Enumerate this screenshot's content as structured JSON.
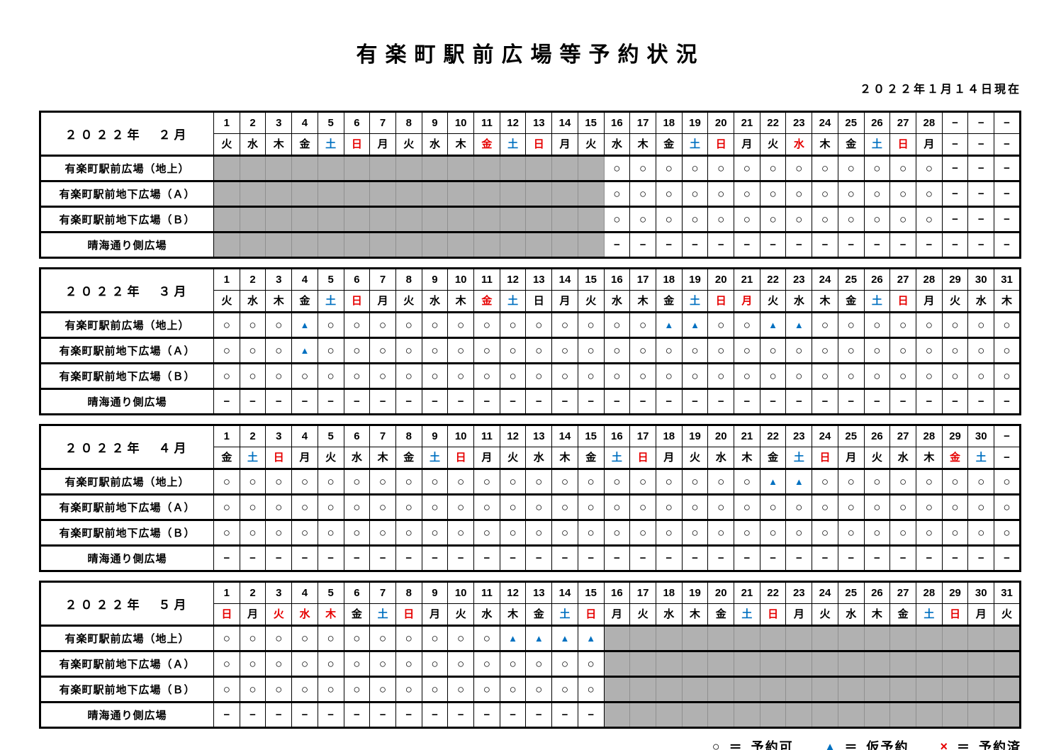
{
  "title": "有楽町駅前広場等予約状況",
  "as_of": "２０２２年１月１４日現在",
  "colors": {
    "red": "#e60000",
    "blue": "#0070c0",
    "gray": "#b1b1b1"
  },
  "marks": {
    "o": "○",
    "t": "▲",
    "d": "−",
    "x": "×"
  },
  "row_labels": [
    "有楽町駅前広場（地上）",
    "有楽町駅前地下広場（Ａ）",
    "有楽町駅前地下広場（Ｂ）",
    "晴海通り側広場"
  ],
  "legend": {
    "eq": "＝",
    "items": [
      {
        "symbol": "○",
        "color": "#000000",
        "label": "予約可"
      },
      {
        "symbol": "▲",
        "color": "#0070c0",
        "label": "仮予約"
      },
      {
        "symbol": "×",
        "color": "#e60000",
        "label": "予約済"
      }
    ]
  },
  "months": [
    {
      "label": "２０２２年　２月",
      "days": [
        "1",
        "2",
        "3",
        "4",
        "5",
        "6",
        "7",
        "8",
        "9",
        "10",
        "11",
        "12",
        "13",
        "14",
        "15",
        "16",
        "17",
        "18",
        "19",
        "20",
        "21",
        "22",
        "23",
        "24",
        "25",
        "26",
        "27",
        "28",
        "−",
        "−",
        "−"
      ],
      "wdays": "火水木金土日月火水木金土日月火水木金土日月火水木金土日月−−−",
      "wcolors": "kkkkbrkkkkrbrkkkkkbrkkrkkbrkkkk",
      "rows": [
        "gggggggggggggggooooooooooooo---",
        "gggggggggggggggooooooooooooo---",
        "gggggggggggggggooooooooooooo---",
        "ggggggggggggggg----------------"
      ]
    },
    {
      "label": "２０２２年　３月",
      "days": [
        "1",
        "2",
        "3",
        "4",
        "5",
        "6",
        "7",
        "8",
        "9",
        "10",
        "11",
        "12",
        "13",
        "14",
        "15",
        "16",
        "17",
        "18",
        "19",
        "20",
        "21",
        "22",
        "23",
        "24",
        "25",
        "26",
        "27",
        "28",
        "29",
        "30",
        "31"
      ],
      "wdays": "火水木金土日月火水木金土日月火水木金土日月火水木金土日月火水木",
      "wcolors": "kkkkbrkkkkrbkkkkkkbrrkkkkbrkkkk",
      "rows": [
        "oootooooooooooooottoottoooooooo",
        "oootooooooooooooooooooooooooooo",
        "ooooooooooooooooooooooooooooooo",
        "-------------------------------"
      ]
    },
    {
      "label": "２０２２年　４月",
      "days": [
        "1",
        "2",
        "3",
        "4",
        "5",
        "6",
        "7",
        "8",
        "9",
        "10",
        "11",
        "12",
        "13",
        "14",
        "15",
        "16",
        "17",
        "18",
        "19",
        "20",
        "21",
        "22",
        "23",
        "24",
        "25",
        "26",
        "27",
        "28",
        "29",
        "30",
        "−"
      ],
      "wdays": "金土日月火水木金土日月火水木金土日月火水木金土日月火水木金土−",
      "wcolors": "kbrkkkkkbrkkkkkbrkkkkkbrkkkkrbk",
      "rows": [
        "ooooooooooooooooooooottoooooooo",
        "ooooooooooooooooooooooooooooooo",
        "ooooooooooooooooooooooooooooooo",
        "-------------------------------"
      ]
    },
    {
      "label": "２０２２年　５月",
      "days": [
        "1",
        "2",
        "3",
        "4",
        "5",
        "6",
        "7",
        "8",
        "9",
        "10",
        "11",
        "12",
        "13",
        "14",
        "15",
        "16",
        "17",
        "18",
        "19",
        "20",
        "21",
        "22",
        "23",
        "24",
        "25",
        "26",
        "27",
        "28",
        "29",
        "30",
        "31"
      ],
      "wdays": "日月火水木金土日月火水木金土日月火水木金土日月火水木金土日月火",
      "wcolors": "rkrrrkbrkkkkkbrkkkkkbrkkkkkbrkk",
      "rows": [
        "ooooooooooottttgggggggggggggggg",
        "ooooooooooooooogggggggggggggggg",
        "ooooooooooooooogggggggggggggggg",
        "---------------gggggggggggggggg"
      ]
    }
  ]
}
